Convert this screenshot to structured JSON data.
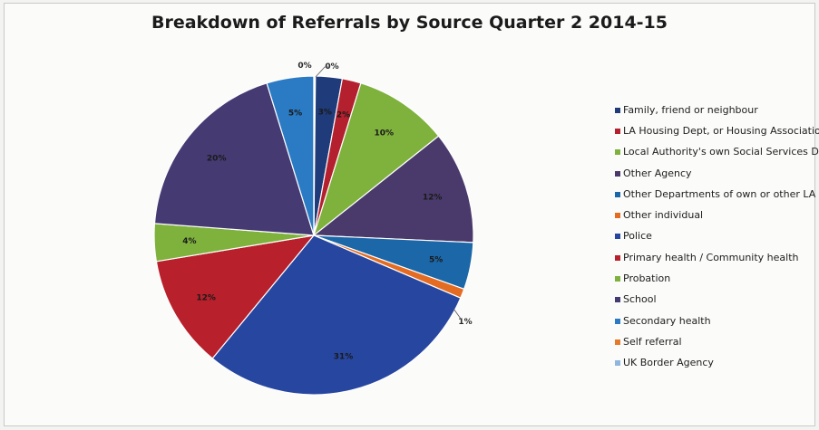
{
  "chart_data": {
    "type": "pie",
    "title": "Breakdown of Referrals by Source Quarter 2 2014-15",
    "legend_position": "right",
    "slices": [
      {
        "name": "Family, friend or neighbour",
        "value": 3,
        "label": "3%",
        "color": "#1f3b7a"
      },
      {
        "name": "LA Housing Dept, or Housing Association",
        "value": 2,
        "label": "2%",
        "color": "#b5202e"
      },
      {
        "name": "Local Authority's own Social Services Dep",
        "value": 10,
        "label": "10%",
        "color": "#7fb13d"
      },
      {
        "name": "Other Agency",
        "value": 12,
        "label": "12%",
        "color": "#4a3a6b"
      },
      {
        "name": "Other Departments of own or other LA",
        "value": 5,
        "label": "5%",
        "color": "#1c67a8"
      },
      {
        "name": "Other individual",
        "value": 1,
        "label": "1%",
        "color": "#e36c22"
      },
      {
        "name": "Police",
        "value": 31,
        "label": "31%",
        "color": "#2746a0"
      },
      {
        "name": "Primary health / Community health",
        "value": 12,
        "label": "12%",
        "color": "#b8202b"
      },
      {
        "name": "Probation",
        "value": 4,
        "label": "4%",
        "color": "#7fb13d"
      },
      {
        "name": "School",
        "value": 20,
        "label": "20%",
        "color": "#453a72"
      },
      {
        "name": "Secondary health",
        "value": 5,
        "label": "5%",
        "color": "#2a7bc4"
      },
      {
        "name": "Self referral",
        "value": 0,
        "label": "0%",
        "color": "#e67a2a"
      },
      {
        "name": "UK Border Agency",
        "value": 0,
        "label": "0%",
        "color": "#8fb6df"
      }
    ]
  }
}
